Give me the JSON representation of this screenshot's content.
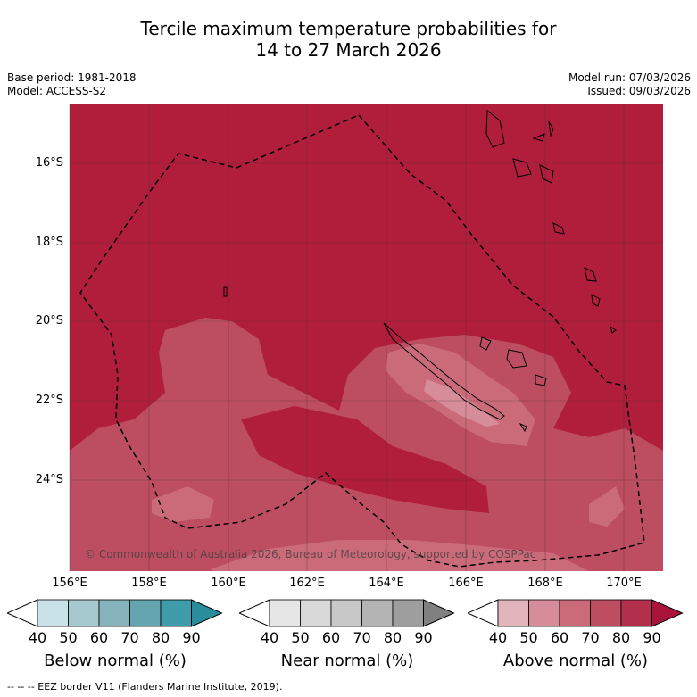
{
  "header": {
    "title_line1": "Tercile maximum temperature probabilities for",
    "title_line2": "14 to 27 March 2026",
    "base_period": "Base period: 1981-2018",
    "model": "Model: ACCESS-S2",
    "model_run": "Model run: 07/03/2026",
    "issued": "Issued: 09/03/2026"
  },
  "map": {
    "lat_labels": [
      "16°S",
      "18°S",
      "20°S",
      "22°S",
      "24°S"
    ],
    "lon_labels": [
      "156°E",
      "158°E",
      "160°E",
      "162°E",
      "164°E",
      "166°E",
      "168°E",
      "170°E"
    ],
    "copyright": "© Commonwealth of Australia 2026, Bureau of Meteorology, supported by COSPPac",
    "background_color": "#b01e3c"
  },
  "colorbars": [
    {
      "label": "Below normal (%)",
      "ticks": [
        "40",
        "50",
        "60",
        "70",
        "80",
        "90"
      ],
      "colors": [
        "#ffffff",
        "#c9e2e8",
        "#a6c8cf",
        "#86b3bc",
        "#64a5b0",
        "#3f9dab",
        "#2a8d9c"
      ]
    },
    {
      "label": "Near normal (%)",
      "ticks": [
        "40",
        "50",
        "60",
        "70",
        "80",
        "90"
      ],
      "colors": [
        "#ffffff",
        "#e6e6e6",
        "#d9d9d9",
        "#c8c8c8",
        "#b4b4b4",
        "#9e9e9e",
        "#808080"
      ]
    },
    {
      "label": "Above normal (%)",
      "ticks": [
        "40",
        "50",
        "60",
        "70",
        "80",
        "90"
      ],
      "colors": [
        "#ffffff",
        "#e2b5bd",
        "#d78d99",
        "#cb6b7a",
        "#bd4e62",
        "#b2304c",
        "#a8143a"
      ]
    }
  ],
  "footer": {
    "legend": "--  --  -- EEZ border V11 (Flanders Marine Institute, 2019)."
  }
}
